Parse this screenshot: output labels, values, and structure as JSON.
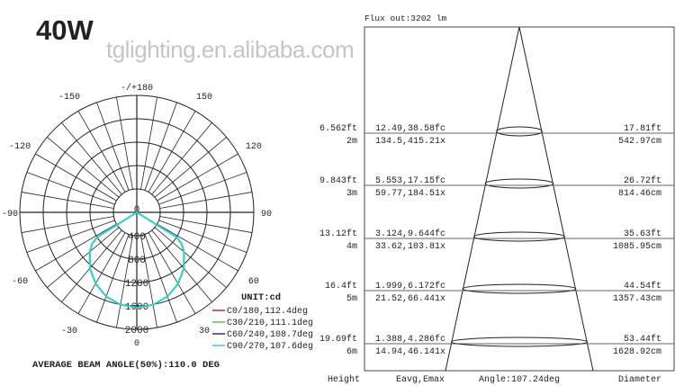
{
  "title": "40W",
  "watermark": "tglighting.en.alibaba.com",
  "polar": {
    "angle_labels": [
      {
        "angle": 180,
        "text": "-/+180"
      },
      {
        "angle": -150,
        "text": "-150"
      },
      {
        "angle": 150,
        "text": "150"
      },
      {
        "angle": -120,
        "text": "-120"
      },
      {
        "angle": 120,
        "text": "120"
      },
      {
        "angle": -90,
        "text": "-90"
      },
      {
        "angle": 90,
        "text": "90"
      },
      {
        "angle": -60,
        "text": "-60"
      },
      {
        "angle": 60,
        "text": "60"
      },
      {
        "angle": -30,
        "text": "-30"
      },
      {
        "angle": 30,
        "text": "30"
      },
      {
        "angle": 0,
        "text": "0"
      }
    ],
    "ring_labels": [
      "0",
      "400",
      "800",
      "1200",
      "1600",
      "2000"
    ],
    "rmax": 2000,
    "unit": "UNIT:cd",
    "legend": [
      {
        "label": "C0/180,112.4deg",
        "color": "#b03030"
      },
      {
        "label": "C30/210,111.1deg",
        "color": "#50c850"
      },
      {
        "label": "C60/240,108.7deg",
        "color": "#303090"
      },
      {
        "label": "C90/270,107.6deg",
        "color": "#30d0d0"
      }
    ],
    "curve_angles": [
      -58,
      -55,
      -50,
      -40,
      -30,
      -20,
      -10,
      0,
      10,
      20,
      30,
      40,
      50,
      55,
      58
    ],
    "curve_values": [
      800,
      930,
      1050,
      1250,
      1410,
      1530,
      1605,
      1630,
      1605,
      1530,
      1410,
      1250,
      1050,
      930,
      800
    ],
    "average": "AVERAGE BEAM ANGLE(50%):110.0 DEG"
  },
  "cone": {
    "flux": "Flux out:3202 lm",
    "rows": [
      {
        "ft": "6.562ft",
        "m": "2m",
        "fc": "12.49,38.58fc",
        "lx": "134.5,415.21x",
        "dft": "17.81ft",
        "dcm": "542.97cm"
      },
      {
        "ft": "9.843ft",
        "m": "3m",
        "fc": "5.553,17.15fc",
        "lx": "59.77,184.51x",
        "dft": "26.72ft",
        "dcm": "814.46cm"
      },
      {
        "ft": "13.12ft",
        "m": "4m",
        "fc": "3.124,9.644fc",
        "lx": "33.62,103.81x",
        "dft": "35.63ft",
        "dcm": "1085.95cm"
      },
      {
        "ft": "16.4ft",
        "m": "5m",
        "fc": "1.999,6.172fc",
        "lx": "21.52,66.441x",
        "dft": "44.54ft",
        "dcm": "1357.43cm"
      },
      {
        "ft": "19.69ft",
        "m": "6m",
        "fc": "1.388,4.286fc",
        "lx": "14.94,46.141x",
        "dft": "53.44ft",
        "dcm": "1628.92cm"
      }
    ],
    "footer": {
      "height": "Height",
      "eavg": "Eavg,Emax",
      "angle": "Angle:107.24deg",
      "diameter": "Diameter"
    }
  }
}
